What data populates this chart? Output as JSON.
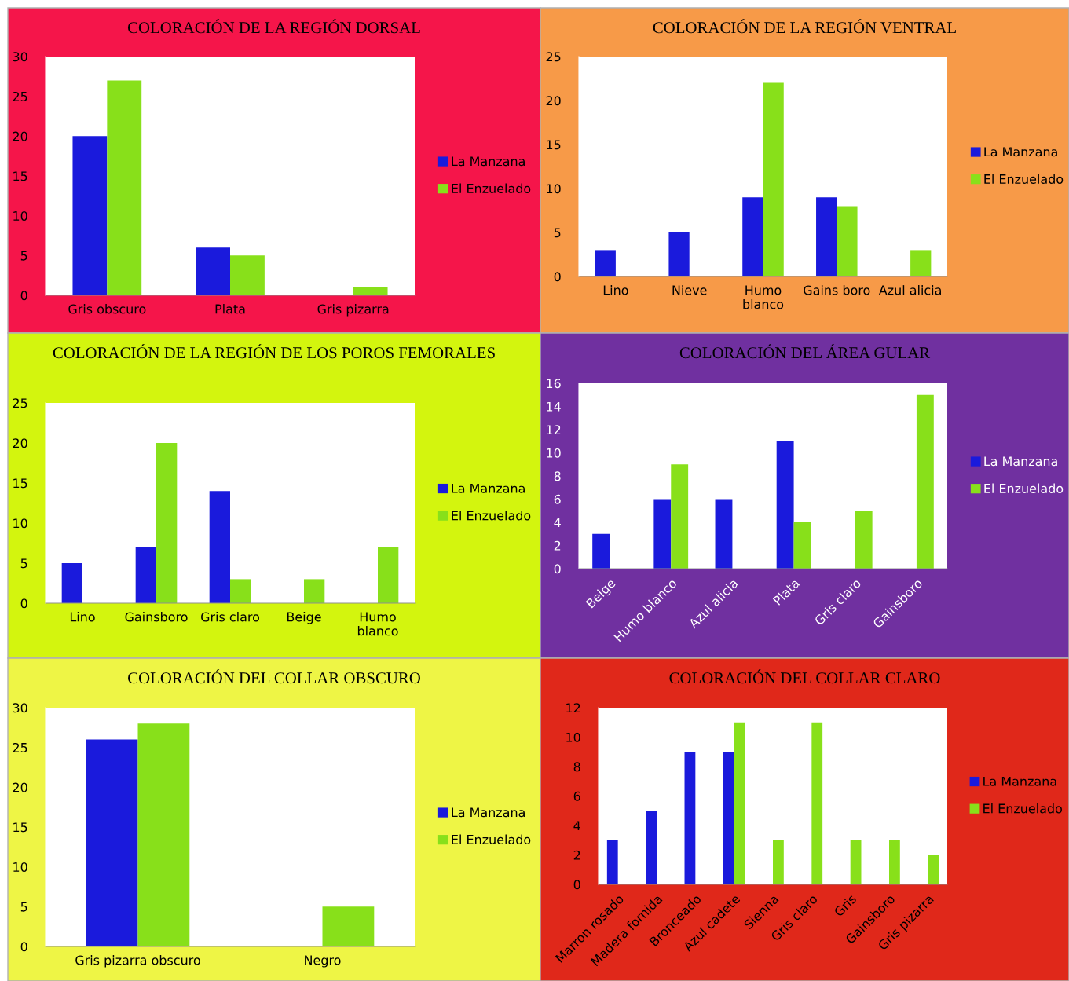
{
  "chart_data": [
    {
      "type": "bar",
      "title": "COLORACIÓN DE LA REGIÓN DORSAL",
      "categories": [
        "Gris obscuro",
        "Plata",
        "Gris pizarra"
      ],
      "series": [
        {
          "name": "La Manzana",
          "color": "#1a1adc",
          "values": [
            20,
            6,
            0
          ]
        },
        {
          "name": "El Enzuelado",
          "color": "#88e01a",
          "values": [
            27,
            5,
            1
          ]
        }
      ],
      "ylim": [
        0,
        30
      ],
      "yticks": [
        0,
        5,
        10,
        15,
        20,
        25,
        30
      ],
      "grid": false,
      "legend": "right"
    },
    {
      "type": "bar",
      "title": "COLORACIÓN DE LA REGIÓN VENTRAL",
      "categories": [
        "Lino",
        "Nieve",
        "Humo\nblanco",
        "Gains boro",
        "Azul alicia"
      ],
      "series": [
        {
          "name": "La Manzana",
          "color": "#1a1adc",
          "values": [
            3,
            5,
            9,
            9,
            0
          ]
        },
        {
          "name": "El Enzuelado",
          "color": "#88e01a",
          "values": [
            0,
            0,
            22,
            8,
            3
          ]
        }
      ],
      "ylim": [
        0,
        25
      ],
      "yticks": [
        0,
        5,
        10,
        15,
        20,
        25
      ],
      "grid": false,
      "legend": "right"
    },
    {
      "type": "bar",
      "title": "COLORACIÓN DE LA REGIÓN DE LOS POROS FEMORALES",
      "categories": [
        "Lino",
        "Gainsboro",
        "Gris claro",
        "Beige",
        "Humo\nblanco"
      ],
      "series": [
        {
          "name": "La Manzana",
          "color": "#1a1adc",
          "values": [
            5,
            7,
            14,
            0,
            0
          ]
        },
        {
          "name": "El Enzuelado",
          "color": "#88e01a",
          "values": [
            0,
            20,
            3,
            3,
            7
          ]
        }
      ],
      "ylim": [
        0,
        25
      ],
      "yticks": [
        0,
        5,
        10,
        15,
        20,
        25
      ],
      "grid": false,
      "legend": "right"
    },
    {
      "type": "bar",
      "title": "COLORACIÓN DEL ÁREA GULAR",
      "categories": [
        "Beige",
        "Humo blanco",
        "Azul alicia",
        "Plata",
        "Gris claro",
        "Gainsboro"
      ],
      "series": [
        {
          "name": "La Manzana",
          "color": "#1a1adc",
          "values": [
            3,
            6,
            6,
            11,
            0,
            0
          ]
        },
        {
          "name": "El Enzuelado",
          "color": "#88e01a",
          "values": [
            0,
            9,
            0,
            4,
            5,
            15
          ]
        }
      ],
      "ylim": [
        0,
        16
      ],
      "yticks": [
        0,
        2,
        4,
        6,
        8,
        10,
        12,
        14,
        16
      ],
      "grid": false,
      "legend": "right"
    },
    {
      "type": "bar",
      "title": "COLORACIÓN DEL COLLAR OBSCURO",
      "categories": [
        "Gris pizarra obscuro",
        "Negro"
      ],
      "series": [
        {
          "name": "La Manzana",
          "color": "#1a1adc",
          "values": [
            26,
            0
          ]
        },
        {
          "name": "El Enzuelado",
          "color": "#88e01a",
          "values": [
            28,
            5
          ]
        }
      ],
      "ylim": [
        0,
        30
      ],
      "yticks": [
        0,
        5,
        10,
        15,
        20,
        25,
        30
      ],
      "grid": false,
      "legend": "right"
    },
    {
      "type": "bar",
      "title": "COLORACIÓN DEL COLLAR CLARO",
      "categories": [
        "Marron rosado",
        "Madera fornida",
        "Bronceado",
        "Azul cadete",
        "Sienna",
        "Gris claro",
        "Gris",
        "Gainsboro",
        "Gris pizarra"
      ],
      "series": [
        {
          "name": "La Manzana",
          "color": "#1a1adc",
          "values": [
            3,
            5,
            9,
            9,
            0,
            0,
            0,
            0,
            0
          ]
        },
        {
          "name": "El Enzuelado",
          "color": "#88e01a",
          "values": [
            0,
            0,
            0,
            11,
            3,
            11,
            3,
            3,
            2
          ]
        }
      ],
      "ylim": [
        0,
        12
      ],
      "yticks": [
        0,
        2,
        4,
        6,
        8,
        10,
        12
      ],
      "grid": false,
      "legend": "right"
    }
  ]
}
